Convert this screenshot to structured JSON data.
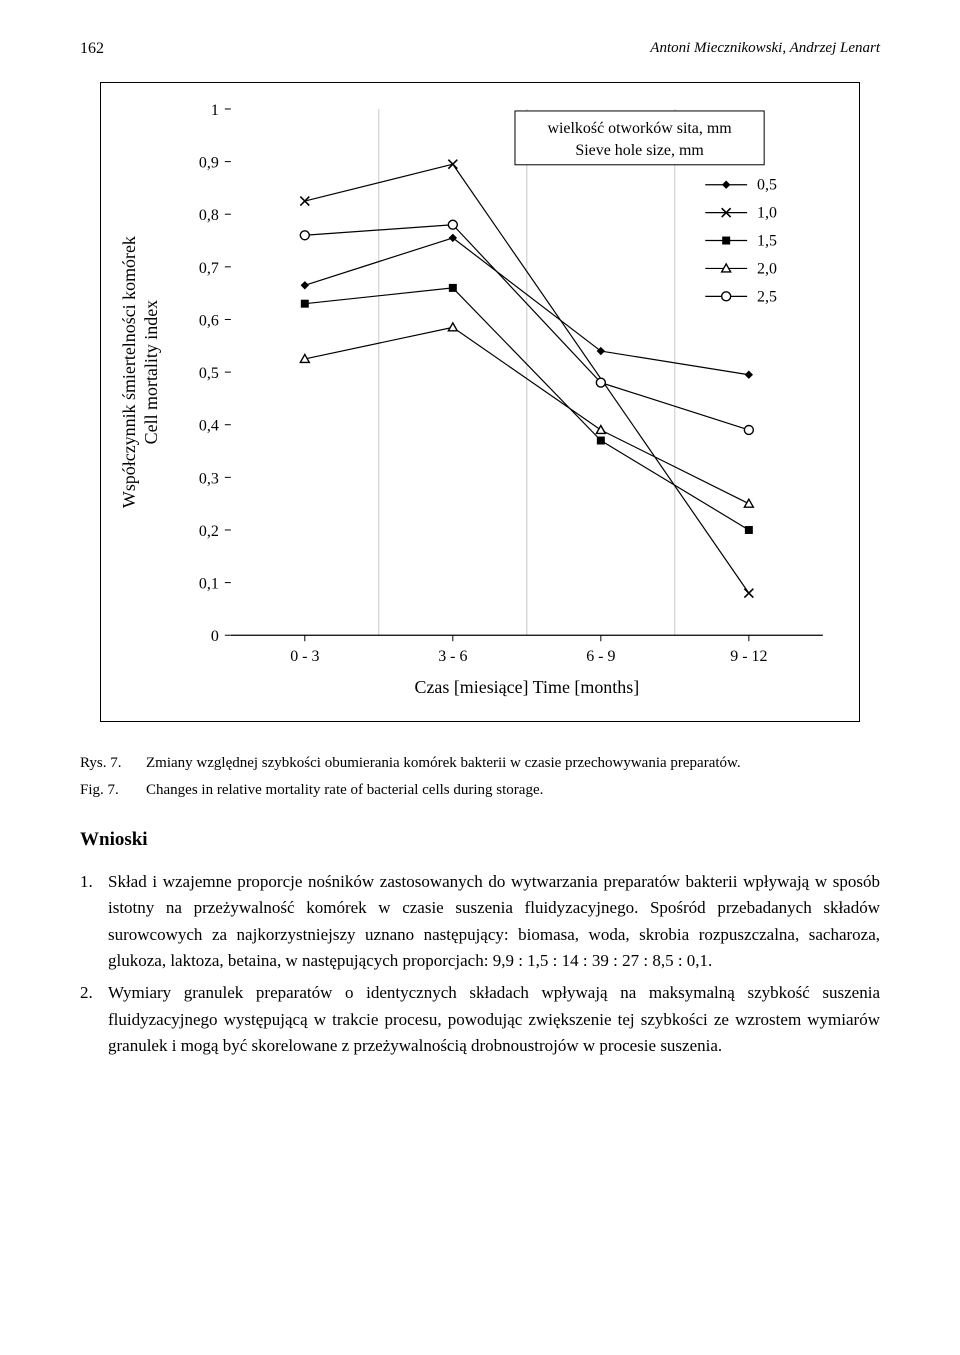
{
  "header": {
    "page_number": "162",
    "authors": "Antoni Miecznikowski, Andrzej Lenart"
  },
  "chart": {
    "type": "line",
    "x_categories": [
      "0 - 3",
      "3 - 6",
      "6 - 9",
      "9 - 12"
    ],
    "x_axis_label": "Czas [miesiące]   Time [months]",
    "y_axis_label_pl": "Współczynnik śmiertelności komórek",
    "y_axis_label_en": "Cell mortality index",
    "y_min": 0,
    "y_max": 1.0,
    "y_ticks": [
      "0",
      "0,1",
      "0,2",
      "0,3",
      "0,4",
      "0,5",
      "0,6",
      "0,7",
      "0,8",
      "0,9",
      "1"
    ],
    "legend_title_pl": "wielkość otworków sita, mm",
    "legend_title_en": "Sieve hole size, mm",
    "series": [
      {
        "name": "0,5",
        "marker": "diamond-filled",
        "values": [
          0.665,
          0.755,
          0.54,
          0.495
        ]
      },
      {
        "name": "1,0",
        "marker": "x",
        "values": [
          0.825,
          0.895,
          null,
          0.08
        ]
      },
      {
        "name": "1,5",
        "marker": "square-filled",
        "values": [
          0.63,
          0.66,
          0.37,
          0.2
        ]
      },
      {
        "name": "2,0",
        "marker": "triangle-open",
        "values": [
          0.525,
          0.585,
          0.39,
          0.25
        ]
      },
      {
        "name": "2,5",
        "marker": "circle-open",
        "values": [
          0.76,
          0.78,
          0.48,
          0.39
        ]
      }
    ],
    "line_color": "#000000",
    "line_width": 1.2,
    "marker_size": 7,
    "background_color": "#ffffff",
    "grid_vertical_color": "#c8c8c8",
    "axis_font_size": 16,
    "y_axis_label_font_size": 18,
    "x_axis_label_font_size": 18,
    "legend_font_size": 16,
    "legend_position": "inside-top-right"
  },
  "caption": {
    "rys_label": "Rys. 7.",
    "rys_text": "Zmiany względnej szybkości obumierania komórek bakterii w czasie przechowywania preparatów.",
    "fig_label": "Fig. 7.",
    "fig_text": "Changes in relative mortality rate of bacterial cells during storage."
  },
  "section": {
    "heading": "Wnioski",
    "items": [
      "Skład i wzajemne proporcje nośników zastosowanych do wytwarzania preparatów bakterii wpływają w sposób istotny na przeżywalność komórek w czasie suszenia fluidyzacyjnego. Spośród przebadanych składów surowcowych za najkorzystniejszy uznano następujący: biomasa, woda, skrobia rozpuszczalna, sacharoza, glukoza, laktoza, betaina, w następujących proporcjach: 9,9 : 1,5 : 14 : 39 : 27 : 8,5 : 0,1.",
      "Wymiary granulek preparatów o identycznych składach wpływają na maksymalną szybkość suszenia fluidyzacyjnego występującą w trakcie procesu, powodując zwiększenie tej szybkości ze wzrostem wymiarów granulek i mogą być skorelowane z przeżywalnością drobnoustrojów w procesie suszenia."
    ]
  }
}
